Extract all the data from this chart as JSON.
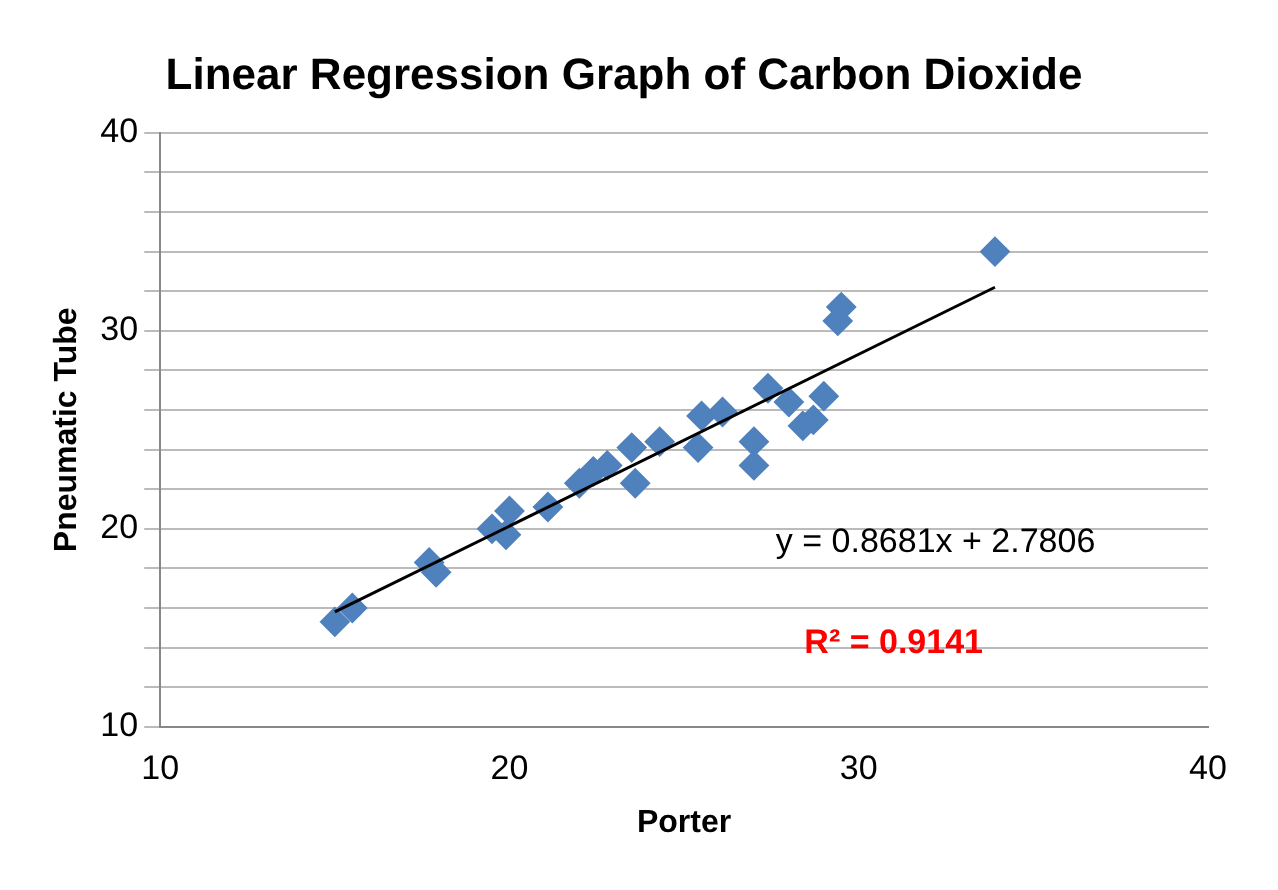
{
  "chart_data": {
    "type": "scatter",
    "title": "Linear Regression Graph of Carbon Dioxide",
    "xlabel": "Porter",
    "ylabel": "Pneumatic Tube",
    "xlim": [
      10,
      40
    ],
    "xticks": [
      10,
      20,
      30,
      40
    ],
    "ylim": [
      10,
      40
    ],
    "yticks": [
      10,
      {
        "value": 12,
        "label": null
      },
      {
        "value": 14,
        "label": null
      },
      {
        "value": 16,
        "label": null
      },
      {
        "value": 18,
        "label": null
      },
      20,
      {
        "value": 22,
        "label": null
      },
      {
        "value": 24,
        "label": null
      },
      {
        "value": 26,
        "label": null
      },
      {
        "value": 28,
        "label": null
      },
      30,
      {
        "value": 32,
        "label": null
      },
      {
        "value": 34,
        "label": null
      },
      {
        "value": 36,
        "label": null
      },
      {
        "value": 38,
        "label": null
      },
      40
    ],
    "grid": "y",
    "legend": false,
    "series": [
      {
        "marker": "diamond",
        "color": "#4f81bd",
        "x": [
          15.0,
          15.5,
          17.7,
          17.9,
          19.5,
          20.0,
          19.9,
          21.1,
          22.0,
          22.4,
          22.8,
          23.5,
          23.6,
          24.3,
          25.4,
          25.5,
          26.1,
          27.0,
          27.0,
          27.4,
          28.0,
          28.4,
          28.7,
          29.0,
          29.4,
          29.5,
          33.9
        ],
        "values": [
          15.3,
          16,
          18.3,
          17.8,
          20,
          20.9,
          19.7,
          21.1,
          22.3,
          22.9,
          23.2,
          24.1,
          22.3,
          24.4,
          24.1,
          25.7,
          25.9,
          23.2,
          24.4,
          27.1,
          26.4,
          25.2,
          25.5,
          26.7,
          30.5,
          31.2,
          34
        ]
      },
      {
        "type": "line",
        "marker": "none",
        "color": "#000000",
        "x": [
          15.0,
          33.9
        ],
        "values": [
          15.8,
          32.2
        ]
      }
    ],
    "annotations": [
      "y = 0.8681x + 2.7806",
      "R² = 0.9141"
    ]
  }
}
